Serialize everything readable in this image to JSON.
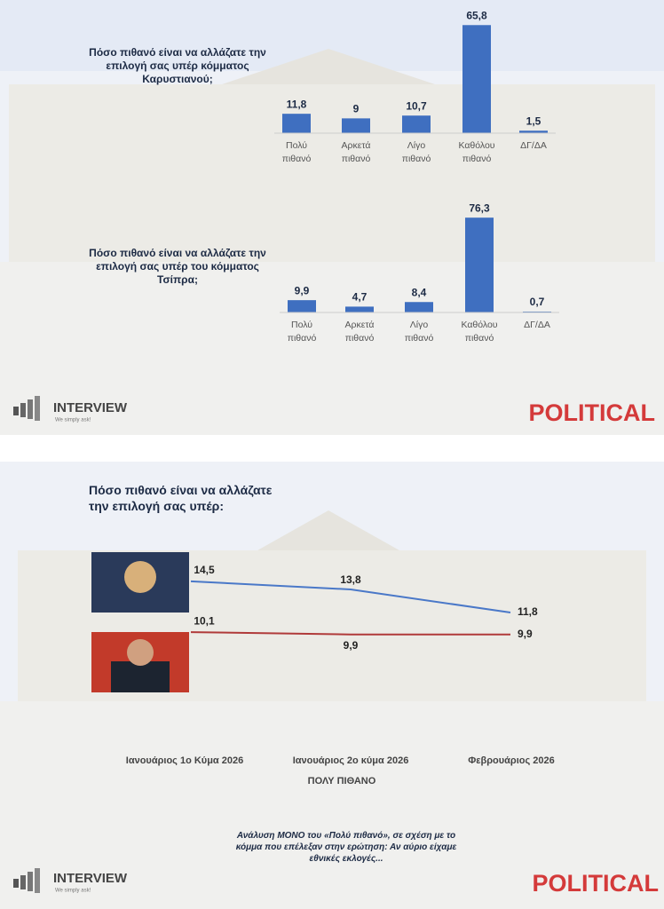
{
  "chart_data": [
    {
      "type": "bar",
      "title": "Πόσο πιθανό είναι να αλλάζατε την επιλογή σας υπέρ κόμματος Καρυστιανού;",
      "categories": [
        "Πολύ πιθανό",
        "Αρκετά πιθανό",
        "Λίγο πιθανό",
        "Καθόλου πιθανό",
        "ΔΓ/ΔΑ"
      ],
      "values": [
        11.8,
        9,
        10.7,
        65.8,
        1.5
      ],
      "value_labels": [
        "11,8",
        "9",
        "10,7",
        "65,8",
        "1,5"
      ],
      "color": "#3f6fc0"
    },
    {
      "type": "bar",
      "title": "Πόσο πιθανό είναι να αλλάζατε την επιλογή σας υπέρ του κόμματος Τσίπρα;",
      "categories": [
        "Πολύ πιθανό",
        "Αρκετά πιθανό",
        "Λίγο πιθανό",
        "Καθόλου πιθανό",
        "ΔΓ/ΔΑ"
      ],
      "values": [
        9.9,
        4.7,
        8.4,
        76.3,
        0.7
      ],
      "value_labels": [
        "9,9",
        "4,7",
        "8,4",
        "76,3",
        "0,7"
      ],
      "color": "#3f6fc0"
    },
    {
      "type": "line",
      "title": "Πόσο πιθανό είναι να αλλάζατε την επιλογή σας υπέρ:",
      "categories": [
        "Ιανουάριος 1ο Κύμα 2026",
        "Ιανουάριος 2ο κύμα 2026",
        "Φεβρουάριος 2026"
      ],
      "x_label": "ΠΟΛΥ ΠΙΘΑΝΟ",
      "series": [
        {
          "color": "#4a78c8",
          "values": [
            14.5,
            13.8,
            11.8
          ],
          "value_labels": [
            "14,5",
            "13,8",
            "11,8"
          ]
        },
        {
          "color": "#b03a3a",
          "values": [
            10.1,
            9.9,
            9.9
          ],
          "value_labels": [
            "10,1",
            "9,9",
            "9,9"
          ]
        }
      ]
    }
  ],
  "slides": [
    {
      "brand": "INTERVIEW",
      "tagline": "We simply ask!",
      "logo": "POLITICAL"
    },
    {
      "brand": "INTERVIEW",
      "tagline": "We simply ask!",
      "logo": "POLITICAL",
      "note": "Ανάλυση ΜΟΝΟ του «Πολύ πιθανό», σε σχέση με το κόμμα που επέλεξαν στην ερώτηση: Αν αύριο είχαμε εθνικές εκλογές..."
    }
  ]
}
